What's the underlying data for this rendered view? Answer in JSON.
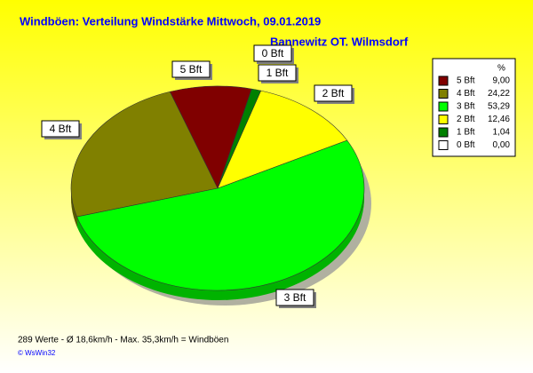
{
  "chart_data": {
    "type": "pie",
    "title": "Windböen: Verteilung Windstärke  Mittwoch, 09.01.2019",
    "subtitle": "Bannewitz OT. Wilmsdorf",
    "legend_header": "%",
    "categories": [
      "5 Bft",
      "4 Bft",
      "3 Bft",
      "2 Bft",
      "1 Bft",
      "0 Bft"
    ],
    "values": [
      9.0,
      24.22,
      53.29,
      12.46,
      1.04,
      0.0
    ],
    "value_labels": [
      "9,00",
      "24,22",
      "53,29",
      "12,46",
      "1,04",
      "0,00"
    ],
    "colors": [
      "#800000",
      "#808000",
      "#00ff00",
      "#ffff00",
      "#008000",
      "#ffffff"
    ],
    "legend": "right",
    "footer": "289 Werte   -   Ø 18,6km/h  -  Max. 35,3km/h = Windböen",
    "copyright": "© WsWin32"
  }
}
